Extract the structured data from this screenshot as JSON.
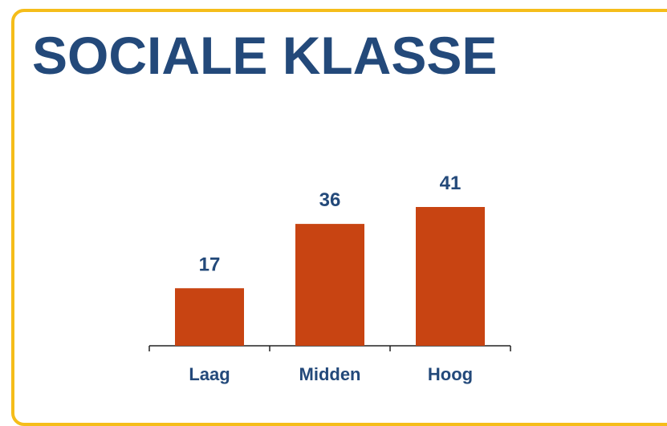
{
  "chart_data": {
    "type": "bar",
    "title": "SOCIALE KLASSE",
    "categories": [
      "Laag",
      "Midden",
      "Hoog"
    ],
    "values": [
      17,
      36,
      41
    ],
    "color": "#c84412"
  }
}
